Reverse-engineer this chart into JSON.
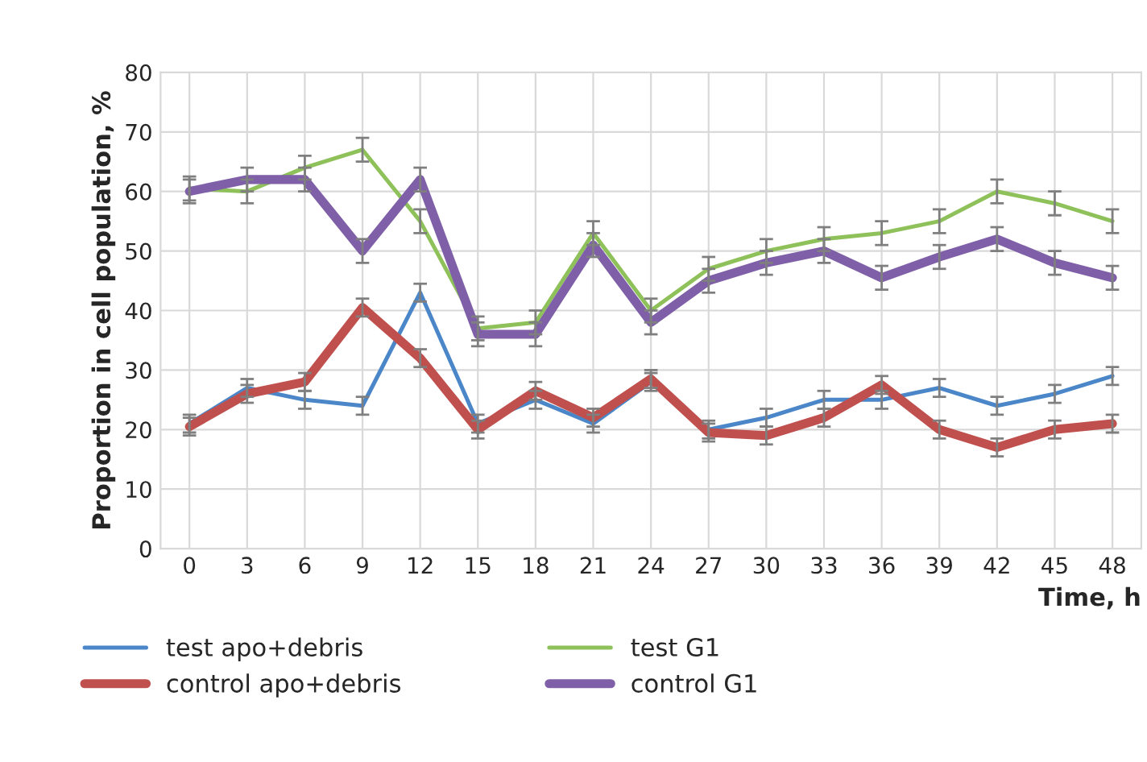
{
  "chart_data": {
    "type": "line",
    "xlabel": "Time, h",
    "ylabel": "Proportion in cell population, %",
    "categories": [
      "0",
      "3",
      "6",
      "9",
      "12",
      "15",
      "18",
      "21",
      "24",
      "27",
      "30",
      "33",
      "36",
      "39",
      "42",
      "45",
      "48"
    ],
    "series": [
      {
        "name": "test apo+debris",
        "color": "#4a86c8",
        "values": [
          21,
          27,
          25,
          24,
          43,
          21,
          25,
          21,
          28,
          20,
          22,
          25,
          25,
          27,
          24,
          26,
          29
        ],
        "errors": [
          1.5,
          1.5,
          1.5,
          1.5,
          1.5,
          1.5,
          1.5,
          1.5,
          1.5,
          1.5,
          1.5,
          1.5,
          1.5,
          1.5,
          1.5,
          1.5,
          1.5
        ]
      },
      {
        "name": "control apo+debris",
        "color": "#c0504d",
        "values": [
          20.5,
          26,
          28,
          40.5,
          32,
          20,
          26.5,
          22,
          28.5,
          19.5,
          19,
          22,
          27.5,
          20,
          17,
          20,
          21
        ],
        "errors": [
          1.5,
          1.5,
          1.5,
          1.5,
          1.5,
          1.5,
          1.5,
          1.5,
          1.5,
          1.5,
          1.5,
          1.5,
          1.5,
          1.5,
          1.5,
          1.5,
          1.5
        ]
      },
      {
        "name": "test G1",
        "color": "#8fc15a",
        "values": [
          60.5,
          60,
          64,
          67,
          55,
          37,
          38,
          53,
          40,
          47,
          50,
          52,
          53,
          55,
          60,
          58,
          55
        ],
        "errors": [
          2,
          2,
          2,
          2,
          2,
          2,
          2,
          2,
          2,
          2,
          2,
          2,
          2,
          2,
          2,
          2,
          2
        ]
      },
      {
        "name": "control G1",
        "color": "#7e5fa8",
        "values": [
          60,
          62,
          62,
          50,
          62,
          36,
          36,
          51,
          38,
          45,
          48,
          50,
          45.5,
          49,
          52,
          48,
          45.5
        ],
        "errors": [
          2,
          2,
          2,
          2,
          2,
          2,
          2,
          2,
          2,
          2,
          2,
          2,
          2,
          2,
          2,
          2,
          2
        ]
      }
    ],
    "ylim": [
      0,
      80
    ],
    "yticks": [
      0,
      10,
      20,
      30,
      40,
      50,
      60,
      70,
      80
    ],
    "grid": true,
    "legend": "bottom",
    "marker": "none",
    "line_style": "solid"
  }
}
